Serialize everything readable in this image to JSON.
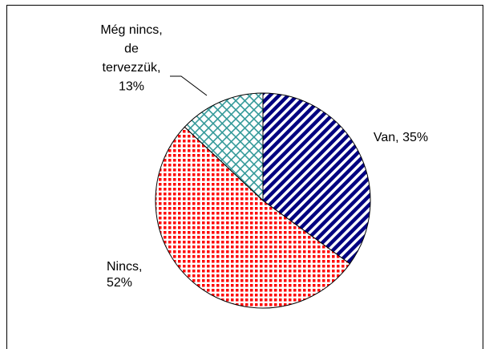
{
  "chart_data": {
    "type": "pie",
    "values": [
      35,
      52,
      13
    ],
    "value_labels": [
      [
        "Van, 35%"
      ],
      [
        "Nincs,",
        "52%"
      ],
      [
        "Még nincs,",
        "de",
        "tervezzük,",
        "13%"
      ]
    ],
    "colors": [
      "#000080",
      "#ff0000",
      "#339999"
    ]
  }
}
